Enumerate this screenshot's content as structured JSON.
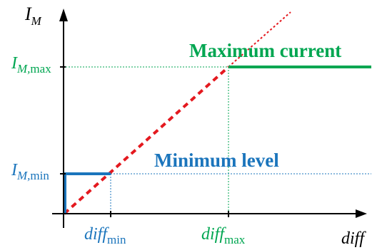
{
  "axes": {
    "y_label_main": "I",
    "y_label_sub": "M",
    "x_label": "diff"
  },
  "ticks": {
    "imax_main": "I",
    "imax_sub": "M,",
    "imax_tail": "max",
    "imin_main": "I",
    "imin_sub": "M,",
    "imin_tail": "min",
    "diffmin_main": "diff",
    "diffmin_sub": "min",
    "diffmax_main": "diff",
    "diffmax_sub": "max"
  },
  "annotations": {
    "maximum_current": "Maximum current",
    "minimum_level": "Minimum level"
  },
  "colors": {
    "green": "#00A651",
    "blue": "#1B75BC",
    "red": "#E4191F",
    "axis": "#000000"
  }
}
